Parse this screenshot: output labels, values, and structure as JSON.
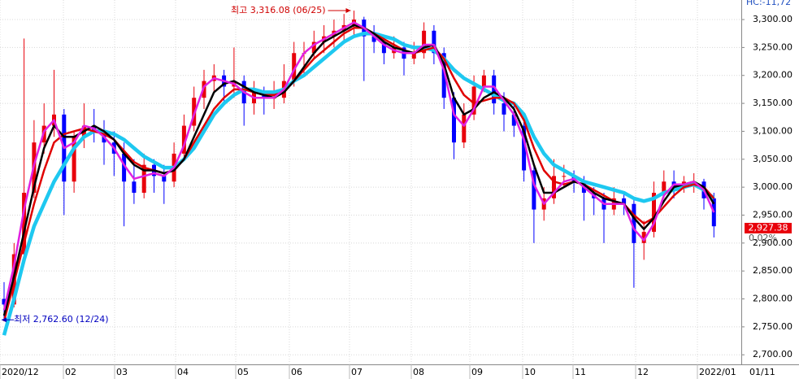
{
  "chart_data": {
    "type": "candlestick",
    "corner_label": "HC:-11,72",
    "ylim": [
      2682,
      3335
    ],
    "yticks": [
      {
        "value": 2700,
        "label": "2,700.00"
      },
      {
        "value": 2750,
        "label": "2,750.00"
      },
      {
        "value": 2800,
        "label": "2,800.00"
      },
      {
        "value": 2850,
        "label": "2,850.00"
      },
      {
        "value": 2900,
        "label": "2,900.00"
      },
      {
        "value": 2950,
        "label": "2,950.00"
      },
      {
        "value": 3000,
        "label": "3,000.00"
      },
      {
        "value": 3050,
        "label": "3,050.00"
      },
      {
        "value": 3100,
        "label": "3,100.00"
      },
      {
        "value": 3150,
        "label": "3,150.00"
      },
      {
        "value": 3200,
        "label": "3,200.00"
      },
      {
        "value": 3250,
        "label": "3,250.00"
      },
      {
        "value": 3300,
        "label": "3,300.00"
      }
    ],
    "x_axis_labels": [
      "2020/12",
      "02",
      "03",
      "04",
      "05",
      "06",
      "07",
      "08",
      "09",
      "10",
      "11",
      "12",
      "2022/01"
    ],
    "axis_date_label": "01/11",
    "grid": true,
    "up_color": "#e8000b",
    "down_color": "#0000ff",
    "candles": [
      [
        2800,
        2830,
        2762.6,
        2790
      ],
      [
        2790,
        2900,
        2785,
        2880
      ],
      [
        2880,
        3266,
        2870,
        2990
      ],
      [
        2990,
        3120,
        2980,
        3080
      ],
      [
        3080,
        3150,
        3060,
        3110
      ],
      [
        3110,
        3210,
        3090,
        3130
      ],
      [
        3130,
        3140,
        2950,
        3010
      ],
      [
        3010,
        3100,
        2990,
        3090
      ],
      [
        3090,
        3150,
        3070,
        3110
      ],
      [
        3110,
        3140,
        3080,
        3100
      ],
      [
        3100,
        3120,
        3040,
        3080
      ],
      [
        3080,
        3100,
        3020,
        3060
      ],
      [
        3060,
        3080,
        2930,
        3010
      ],
      [
        3010,
        3050,
        2970,
        2990
      ],
      [
        2990,
        3060,
        2980,
        3040
      ],
      [
        3040,
        3050,
        2990,
        3020
      ],
      [
        3020,
        3040,
        2970,
        3010
      ],
      [
        3010,
        3080,
        3000,
        3060
      ],
      [
        3060,
        3130,
        3050,
        3110
      ],
      [
        3110,
        3180,
        3100,
        3160
      ],
      [
        3160,
        3210,
        3140,
        3190
      ],
      [
        3190,
        3220,
        3170,
        3200
      ],
      [
        3200,
        3210,
        3150,
        3180
      ],
      [
        3180,
        3250,
        3160,
        3190
      ],
      [
        3190,
        3200,
        3110,
        3150
      ],
      [
        3150,
        3190,
        3130,
        3170
      ],
      [
        3170,
        3180,
        3130,
        3160
      ],
      [
        3160,
        3190,
        3140,
        3160
      ],
      [
        3160,
        3220,
        3150,
        3190
      ],
      [
        3190,
        3260,
        3180,
        3240
      ],
      [
        3240,
        3260,
        3200,
        3240
      ],
      [
        3240,
        3280,
        3230,
        3260
      ],
      [
        3260,
        3290,
        3240,
        3270
      ],
      [
        3270,
        3300,
        3250,
        3280
      ],
      [
        3280,
        3310,
        3260,
        3290
      ],
      [
        3290,
        3316.08,
        3270,
        3300
      ],
      [
        3300,
        3305,
        3190,
        3270
      ],
      [
        3270,
        3290,
        3240,
        3260
      ],
      [
        3260,
        3270,
        3220,
        3240
      ],
      [
        3240,
        3270,
        3230,
        3250
      ],
      [
        3250,
        3260,
        3200,
        3230
      ],
      [
        3230,
        3260,
        3220,
        3240
      ],
      [
        3240,
        3295,
        3230,
        3280
      ],
      [
        3280,
        3290,
        3220,
        3240
      ],
      [
        3240,
        3250,
        3140,
        3160
      ],
      [
        3160,
        3170,
        3050,
        3080
      ],
      [
        3080,
        3150,
        3070,
        3130
      ],
      [
        3130,
        3200,
        3120,
        3180
      ],
      [
        3180,
        3210,
        3170,
        3200
      ],
      [
        3200,
        3210,
        3130,
        3150
      ],
      [
        3150,
        3170,
        3100,
        3130
      ],
      [
        3130,
        3150,
        3090,
        3110
      ],
      [
        3110,
        3120,
        3010,
        3030
      ],
      [
        3030,
        3040,
        2900,
        2960
      ],
      [
        2960,
        3000,
        2940,
        2980
      ],
      [
        2980,
        3050,
        2970,
        3020
      ],
      [
        3020,
        3040,
        3000,
        3020
      ],
      [
        3020,
        3030,
        2990,
        3010
      ],
      [
        3010,
        3020,
        2940,
        2990
      ],
      [
        2990,
        3000,
        2950,
        2980
      ],
      [
        2980,
        2990,
        2900,
        2960
      ],
      [
        2960,
        3000,
        2950,
        2980
      ],
      [
        2980,
        2990,
        2950,
        2970
      ],
      [
        2970,
        2980,
        2820,
        2900
      ],
      [
        2900,
        2940,
        2870,
        2920
      ],
      [
        2920,
        3010,
        2910,
        2990
      ],
      [
        2990,
        3030,
        2980,
        3010
      ],
      [
        3010,
        3030,
        2980,
        3000
      ],
      [
        3000,
        3020,
        2990,
        3010
      ],
      [
        3010,
        3025,
        2990,
        3010
      ],
      [
        3010,
        3015,
        2960,
        2980
      ],
      [
        2980,
        2990,
        2910,
        2930
      ]
    ],
    "series": [
      {
        "color": "#1ec8f0",
        "width": 4.5,
        "values": [
          2735,
          2800,
          2870,
          2930,
          2970,
          3010,
          3040,
          3070,
          3090,
          3100,
          3100,
          3095,
          3085,
          3070,
          3055,
          3045,
          3035,
          3035,
          3050,
          3070,
          3100,
          3130,
          3150,
          3165,
          3175,
          3175,
          3170,
          3170,
          3175,
          3190,
          3200,
          3215,
          3230,
          3245,
          3260,
          3270,
          3275,
          3275,
          3270,
          3265,
          3255,
          3250,
          3250,
          3245,
          3230,
          3210,
          3195,
          3185,
          3175,
          3165,
          3155,
          3150,
          3130,
          3090,
          3060,
          3040,
          3030,
          3020,
          3010,
          3005,
          3000,
          2995,
          2990,
          2980,
          2975,
          2980,
          2990,
          2995,
          3000,
          3005,
          2995,
          2980
        ]
      },
      {
        "color": "#e00000",
        "width": 2.5,
        "values": [
          2760,
          2830,
          2900,
          2970,
          3030,
          3080,
          3095,
          3100,
          3105,
          3100,
          3095,
          3085,
          3065,
          3045,
          3035,
          3030,
          3025,
          3030,
          3050,
          3080,
          3110,
          3140,
          3160,
          3175,
          3175,
          3170,
          3165,
          3165,
          3170,
          3190,
          3210,
          3230,
          3245,
          3260,
          3275,
          3285,
          3285,
          3275,
          3265,
          3255,
          3245,
          3240,
          3245,
          3250,
          3230,
          3195,
          3165,
          3150,
          3155,
          3160,
          3160,
          3150,
          3120,
          3070,
          3030,
          3010,
          3005,
          3010,
          3005,
          2995,
          2985,
          2975,
          2970,
          2950,
          2935,
          2945,
          2965,
          2985,
          3000,
          3005,
          3000,
          2980
        ]
      },
      {
        "color": "#000000",
        "width": 2.5,
        "values": [
          2770,
          2840,
          2920,
          3000,
          3070,
          3110,
          3090,
          3090,
          3100,
          3110,
          3100,
          3085,
          3060,
          3040,
          3030,
          3030,
          3025,
          3030,
          3050,
          3090,
          3130,
          3170,
          3185,
          3190,
          3180,
          3170,
          3165,
          3160,
          3170,
          3190,
          3215,
          3240,
          3260,
          3270,
          3280,
          3290,
          3285,
          3275,
          3260,
          3250,
          3245,
          3240,
          3250,
          3255,
          3220,
          3160,
          3130,
          3140,
          3160,
          3170,
          3160,
          3140,
          3100,
          3040,
          2990,
          2990,
          3000,
          3010,
          3005,
          2990,
          2980,
          2975,
          2970,
          2945,
          2925,
          2945,
          2975,
          3000,
          3005,
          3010,
          3000,
          2970
        ]
      },
      {
        "color": "#e020e0",
        "width": 2.5,
        "values": [
          2780,
          2860,
          2960,
          3040,
          3100,
          3120,
          3070,
          3080,
          3110,
          3105,
          3090,
          3070,
          3040,
          3015,
          3020,
          3025,
          3020,
          3035,
          3075,
          3130,
          3180,
          3195,
          3190,
          3185,
          3170,
          3160,
          3160,
          3160,
          3175,
          3210,
          3240,
          3255,
          3265,
          3275,
          3285,
          3295,
          3285,
          3270,
          3255,
          3245,
          3240,
          3240,
          3255,
          3255,
          3210,
          3130,
          3110,
          3140,
          3180,
          3180,
          3155,
          3130,
          3085,
          3005,
          2970,
          2990,
          3010,
          3015,
          3000,
          2985,
          2970,
          2970,
          2970,
          2925,
          2905,
          2935,
          2985,
          3005,
          3005,
          3010,
          2995,
          2955
        ]
      }
    ],
    "annotations": {
      "high": "최고 3,316.08 (06/25)",
      "low": "최저 2,762.60 (12/24)"
    },
    "current_price": {
      "value": 2927.38,
      "label": "2,927.38",
      "color": "#e8000b"
    },
    "change_label": "0.02%"
  }
}
